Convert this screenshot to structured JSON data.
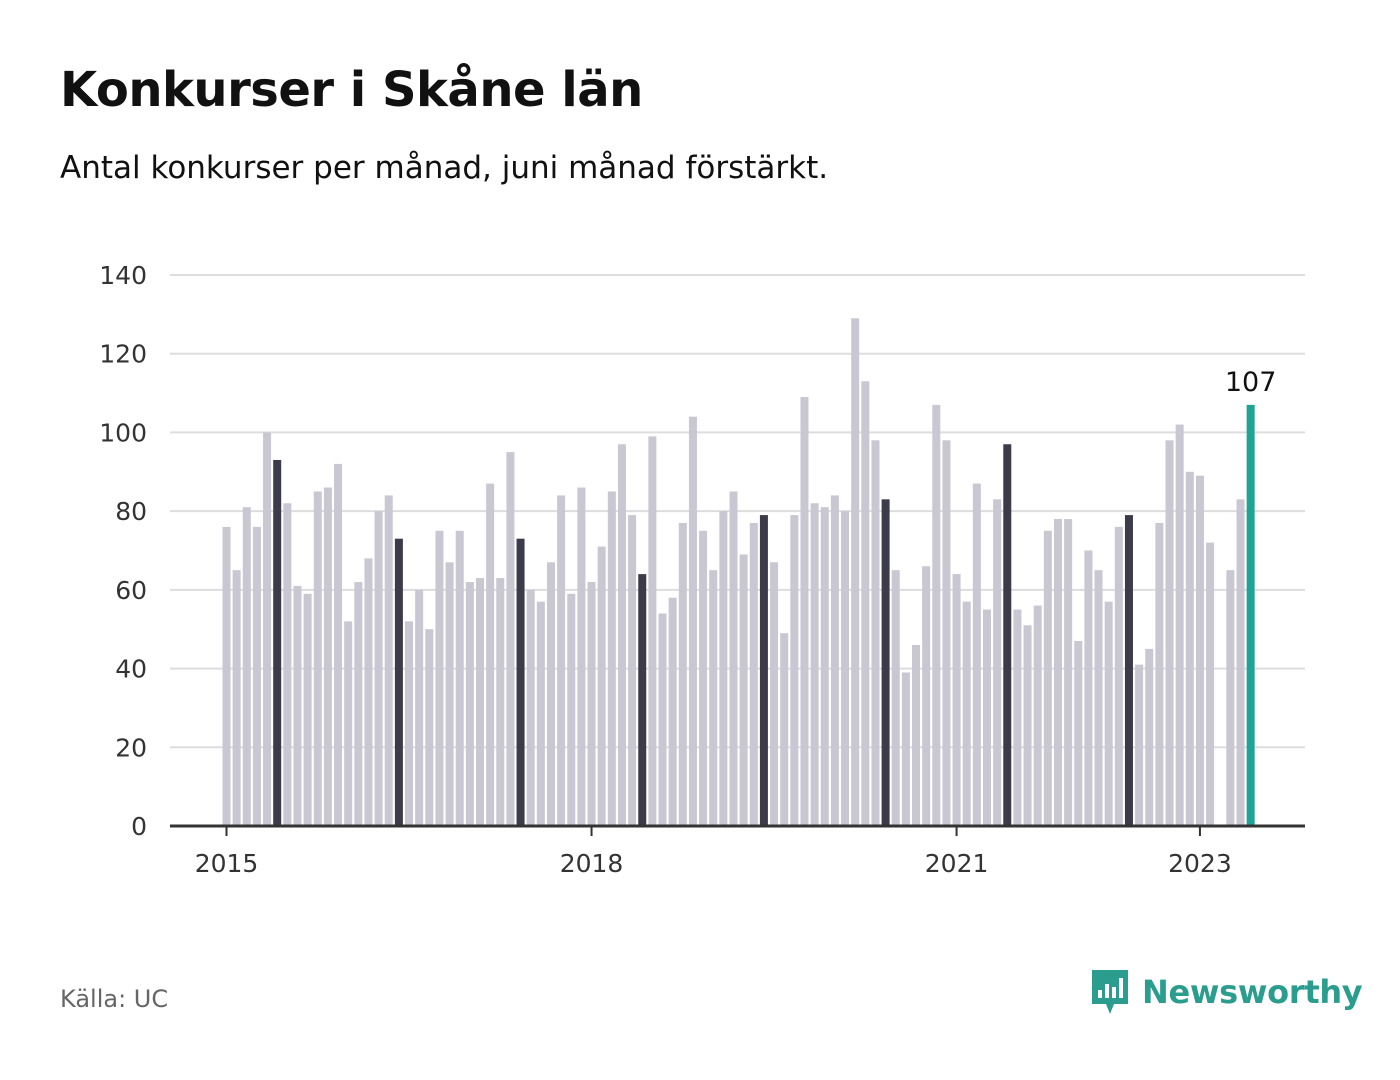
{
  "header": {
    "title": "Konkurser i Skåne län",
    "subtitle": "Antal konkurser per månad, juni månad förstärkt."
  },
  "footer": {
    "source": "Källa: UC",
    "brand": "Newsworthy"
  },
  "colors": {
    "bar_default": "#c8c7d2",
    "bar_june": "#3c3b4a",
    "bar_latest": "#1fa394",
    "grid": "#dddddd",
    "axis": "#333333",
    "brand": "#2a9d8f"
  },
  "chart_data": {
    "type": "bar",
    "title": "Konkurser i Skåne län",
    "subtitle": "Antal konkurser per månad, juni månad förstärkt.",
    "xlabel": "",
    "ylabel": "",
    "ylim": [
      0,
      140
    ],
    "yticks": [
      0,
      20,
      40,
      60,
      80,
      100,
      120,
      140
    ],
    "grid": true,
    "xtick_labels": [
      {
        "label": "2015",
        "month": "2015-01"
      },
      {
        "label": "2018",
        "month": "2018-01"
      },
      {
        "label": "2021",
        "month": "2021-01"
      },
      {
        "label": "2023",
        "month": "2023-01"
      }
    ],
    "first_month": "2015-01",
    "last_month": "2023-06",
    "highlight": "June bars drawn dark; latest bar (2023-06) drawn teal",
    "annotation": {
      "month": "2023-06",
      "text": "107"
    },
    "values": [
      76,
      65,
      81,
      76,
      100,
      93,
      82,
      61,
      59,
      85,
      86,
      92,
      52,
      62,
      68,
      80,
      84,
      73,
      52,
      60,
      50,
      75,
      67,
      75,
      62,
      63,
      87,
      63,
      95,
      73,
      60,
      57,
      67,
      84,
      59,
      86,
      62,
      71,
      85,
      97,
      79,
      64,
      99,
      54,
      58,
      77,
      104,
      75,
      65,
      80,
      85,
      69,
      77,
      79,
      67,
      49,
      79,
      109,
      82,
      81,
      84,
      80,
      129,
      113,
      98,
      83,
      65,
      39,
      46,
      66,
      107,
      98,
      64,
      57,
      87,
      55,
      83,
      97,
      55,
      51,
      56,
      75,
      78,
      78,
      47,
      70,
      65,
      57,
      76,
      79,
      41,
      45,
      77,
      98,
      102,
      90,
      89,
      72,
      null,
      65,
      83,
      107
    ]
  }
}
